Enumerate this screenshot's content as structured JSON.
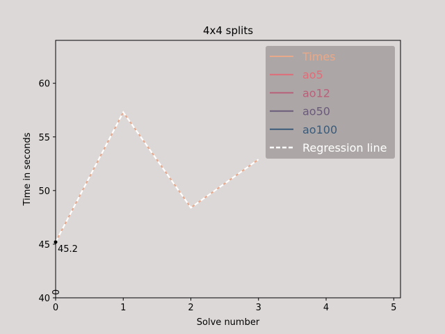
{
  "chart_data": {
    "type": "line",
    "title": "4x4 splits",
    "xlabel": "Solve number",
    "ylabel": "Time in seconds",
    "xlim": [
      0,
      5.1
    ],
    "ylim": [
      40,
      64
    ],
    "xticks": [
      0,
      1,
      2,
      3,
      4,
      5
    ],
    "yticks": [
      40,
      45,
      50,
      55,
      60
    ],
    "grid": false,
    "legend_position": "upper-right",
    "series": [
      {
        "name": "Times",
        "color": "#e8a88a",
        "x": [
          0,
          1,
          2,
          3
        ],
        "y": [
          45.2,
          57.3,
          48.4,
          52.9
        ]
      },
      {
        "name": "ao5",
        "color": "#e06c78",
        "x": [],
        "y": []
      },
      {
        "name": "ao12",
        "color": "#b8607a",
        "x": [],
        "y": []
      },
      {
        "name": "ao50",
        "color": "#6a5a7a",
        "x": [],
        "y": []
      },
      {
        "name": "ao100",
        "color": "#3a5a7a",
        "x": [],
        "y": []
      },
      {
        "name": "Regression line",
        "color": "#ffffff",
        "dashed": true,
        "x": [
          0,
          1,
          2,
          3
        ],
        "y": [
          45.2,
          57.3,
          48.4,
          52.9
        ]
      }
    ],
    "annotations": [
      {
        "text": "45.2",
        "x": 0,
        "y": 45.2
      },
      {
        "text": "0",
        "x": 0,
        "y": 40,
        "rotation": 90
      }
    ],
    "background": "#ddd8d8",
    "plot_background": "#ddd8d8",
    "legend_background": "#a9a4a3"
  }
}
